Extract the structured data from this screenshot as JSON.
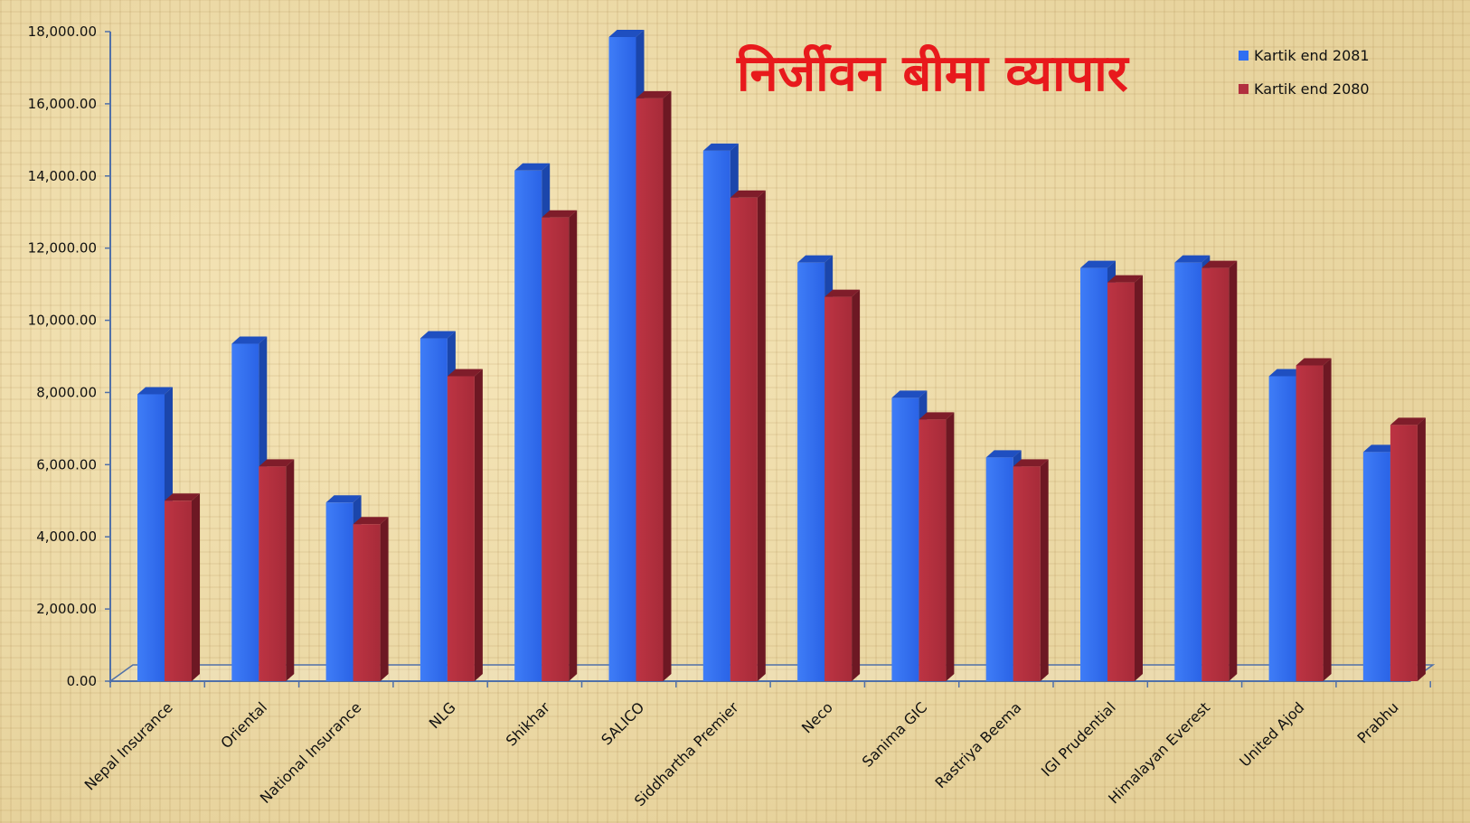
{
  "chart_data": {
    "type": "bar",
    "title": "निर्जीवन बीमा व्यापार",
    "xlabel": "",
    "ylabel": "",
    "ylim": [
      0,
      18000
    ],
    "yticks": [
      "0.00",
      "2,000.00",
      "4,000.00",
      "6,000.00",
      "8,000.00",
      "10,000.00",
      "12,000.00",
      "14,000.00",
      "16,000.00",
      "18,000.00"
    ],
    "grid": false,
    "legend_position": "top-right",
    "categories": [
      "Nepal Insurance",
      "Oriental",
      "National Insurance",
      "NLG",
      "Shikhar",
      "SALICO",
      "Siddhartha Premier",
      "Neco",
      "Sanima GIC",
      "Rastriya Beema",
      "IGI Prudential",
      "Himalayan Everest",
      "United Ajod",
      "Prabhu"
    ],
    "series": [
      {
        "name": "Kartik end 2081",
        "color": "#2f6ef2",
        "values": [
          7950,
          9350,
          4950,
          9500,
          14150,
          17850,
          14700,
          11600,
          7850,
          6200,
          11450,
          11600,
          8450,
          6350
        ]
      },
      {
        "name": "Kartik end 2080",
        "color": "#b1303f",
        "values": [
          5000,
          5950,
          4350,
          8450,
          12850,
          16150,
          13400,
          10650,
          7250,
          5950,
          11050,
          11450,
          8750,
          7100
        ]
      }
    ]
  }
}
